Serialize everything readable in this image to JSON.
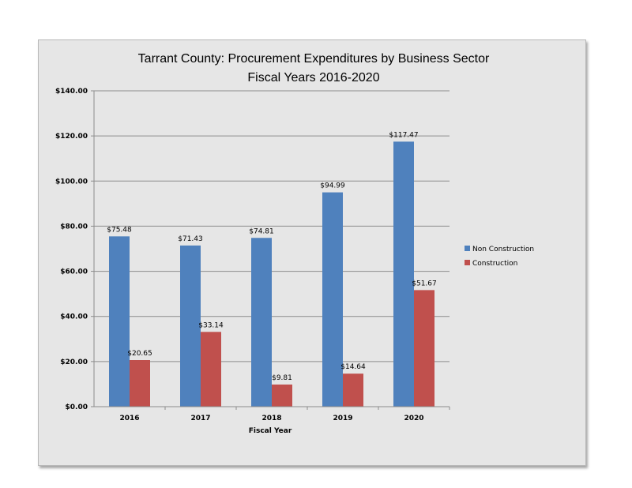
{
  "chart_data": {
    "type": "bar",
    "title": "Tarrant County: Procurement Expenditures by Business Sector",
    "subtitle": "Fiscal Years 2016-2020",
    "xlabel": "Fiscal Year",
    "ylabel": "",
    "categories": [
      "2016",
      "2017",
      "2018",
      "2019",
      "2020"
    ],
    "series": [
      {
        "name": "Non Construction",
        "values": [
          75.48,
          71.43,
          74.81,
          94.99,
          117.47
        ],
        "labels": [
          "$75.48",
          "$71.43",
          "$74.81",
          "$94.99",
          "$117.47"
        ],
        "color": "#4f81bd"
      },
      {
        "name": "Construction",
        "values": [
          20.65,
          33.14,
          9.81,
          14.64,
          51.67
        ],
        "labels": [
          "$20.65",
          "$33.14",
          "$9.81",
          "$14.64",
          "$51.67"
        ],
        "color": "#c0504d"
      }
    ],
    "ylim": [
      0,
      140
    ],
    "yticks": [
      0,
      20,
      40,
      60,
      80,
      100,
      120,
      140
    ],
    "ytick_labels": [
      "$0.00",
      "$20.00",
      "$40.00",
      "$60.00",
      "$80.00",
      "$100.00",
      "$120.00",
      "$140.00"
    ],
    "grid": true,
    "legend_position": "right"
  }
}
